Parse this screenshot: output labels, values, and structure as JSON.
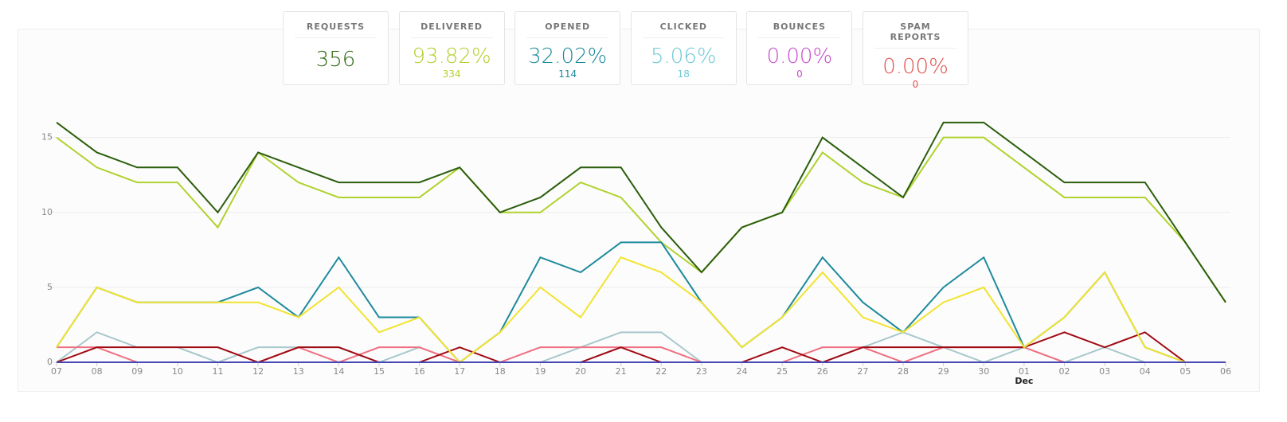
{
  "cards": [
    {
      "title": "REQUESTS",
      "value": "356",
      "color": "#2f6a12"
    },
    {
      "title": "DELIVERED",
      "value": "93.82%",
      "sub": "334",
      "color": "#b5cf2c"
    },
    {
      "title": "OPENED",
      "value": "32.02%",
      "sub": "114",
      "color": "#1d8a9c"
    },
    {
      "title": "CLICKED",
      "value": "5.06%",
      "sub": "18",
      "color": "#6ccad4"
    },
    {
      "title": "BOUNCES",
      "value": "0.00%",
      "sub": "0",
      "color": "#c64ccc"
    },
    {
      "title": "SPAM REPORTS",
      "value": "0.00%",
      "sub": "0",
      "color": "#e2504a"
    }
  ],
  "chart_data": {
    "type": "line",
    "categories": [
      "07",
      "08",
      "09",
      "10",
      "11",
      "12",
      "13",
      "14",
      "15",
      "16",
      "17",
      "18",
      "19",
      "20",
      "21",
      "22",
      "23",
      "24",
      "25",
      "26",
      "27",
      "28",
      "29",
      "30",
      "01",
      "02",
      "03",
      "04",
      "05",
      "06"
    ],
    "month_labels": [
      {
        "label": "Dec",
        "at": "01"
      }
    ],
    "ylim": [
      0,
      17
    ],
    "yticks": [
      0,
      5,
      10,
      15
    ],
    "grid": true,
    "series": [
      {
        "color": "#b0d22e",
        "values": [
          15,
          13,
          12,
          12,
          9,
          14,
          12,
          11,
          11,
          11,
          13,
          10,
          10,
          12,
          11,
          8,
          6,
          9,
          10,
          14,
          12,
          11,
          15,
          15,
          13,
          11,
          11,
          11,
          8,
          4
        ]
      },
      {
        "color": "#2b5e0c",
        "values": [
          16,
          14,
          13,
          13,
          10,
          14,
          13,
          12,
          12,
          12,
          13,
          10,
          11,
          13,
          13,
          9,
          6,
          9,
          10,
          15,
          13,
          11,
          16,
          16,
          14,
          12,
          12,
          12,
          8,
          4
        ]
      },
      {
        "color": "#a8c8cc",
        "values": [
          0,
          2,
          1,
          1,
          0,
          1,
          1,
          1,
          0,
          1,
          0,
          0,
          0,
          1,
          2,
          2,
          0,
          0,
          0,
          0,
          1,
          2,
          1,
          0,
          1,
          0,
          1,
          0,
          0,
          0
        ]
      },
      {
        "color": "#f07080",
        "values": [
          1,
          1,
          0,
          0,
          0,
          0,
          1,
          0,
          1,
          1,
          0,
          0,
          1,
          1,
          1,
          1,
          0,
          0,
          0,
          1,
          1,
          0,
          1,
          1,
          1,
          0,
          0,
          0,
          0,
          0
        ]
      },
      {
        "color": "#a00a14",
        "values": [
          0,
          1,
          1,
          1,
          1,
          0,
          1,
          1,
          0,
          0,
          1,
          0,
          0,
          0,
          1,
          0,
          0,
          0,
          1,
          0,
          1,
          1,
          1,
          1,
          1,
          2,
          1,
          2,
          0,
          0
        ]
      },
      {
        "color": "#1d8a9c",
        "values": [
          1,
          5,
          4,
          4,
          4,
          5,
          3,
          7,
          3,
          3,
          0,
          2,
          7,
          6,
          8,
          8,
          4,
          1,
          3,
          7,
          4,
          2,
          5,
          7,
          1,
          3,
          6,
          1,
          0,
          0
        ]
      },
      {
        "color": "#f2e330",
        "values": [
          1,
          5,
          4,
          4,
          4,
          4,
          3,
          5,
          2,
          3,
          0,
          2,
          5,
          3,
          7,
          6,
          4,
          1,
          3,
          6,
          3,
          2,
          4,
          5,
          1,
          3,
          6,
          1,
          0,
          0
        ]
      },
      {
        "color": "#4646b4",
        "values": [
          0,
          0,
          0,
          0,
          0,
          0,
          0,
          0,
          0,
          0,
          0,
          0,
          0,
          0,
          0,
          0,
          0,
          0,
          0,
          0,
          0,
          0,
          0,
          0,
          0,
          0,
          0,
          0,
          0,
          0
        ]
      }
    ]
  }
}
